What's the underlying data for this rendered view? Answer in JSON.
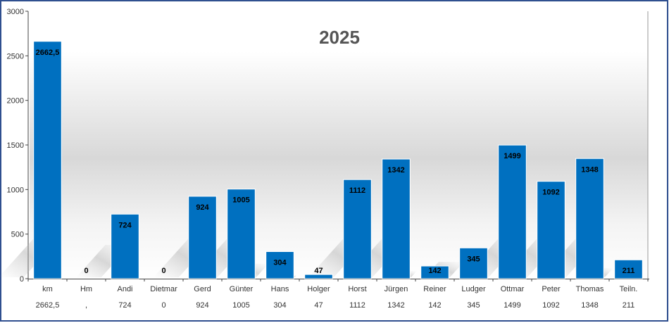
{
  "colors": {
    "bar": "#0070C0",
    "border": "#2F4F8F",
    "title": "#555555"
  },
  "chart_data": {
    "type": "bar",
    "title": "2025",
    "xlabel": "",
    "ylabel": "",
    "ylim": [
      0,
      3000
    ],
    "yticks": [
      0,
      500,
      1000,
      1500,
      2000,
      2500,
      3000
    ],
    "grid": false,
    "legend": "none",
    "categories": [
      "km",
      "Hm",
      "Andi",
      "Dietmar",
      "Gerd",
      "Günter",
      "Hans",
      "Holger",
      "Horst",
      "Jürgen",
      "Reiner",
      "Ludger",
      "Ottmar",
      "Peter",
      "Thomas",
      "Teiln."
    ],
    "values": [
      2662.5,
      0,
      724,
      0,
      924,
      1005,
      304,
      47,
      1112,
      1342,
      142,
      345,
      1499,
      1092,
      1348,
      211
    ],
    "data_labels": [
      "2662,5",
      "0",
      "724",
      "0",
      "924",
      "1005",
      "304",
      "47",
      "1112",
      "1342",
      "142",
      "345",
      "1499",
      "1092",
      "1348",
      "211"
    ],
    "table_values": [
      "2662,5",
      ",",
      "724",
      "0",
      "924",
      "1005",
      "304",
      "47",
      "1112",
      "1342",
      "142",
      "345",
      "1499",
      "1092",
      "1348",
      "211"
    ]
  }
}
